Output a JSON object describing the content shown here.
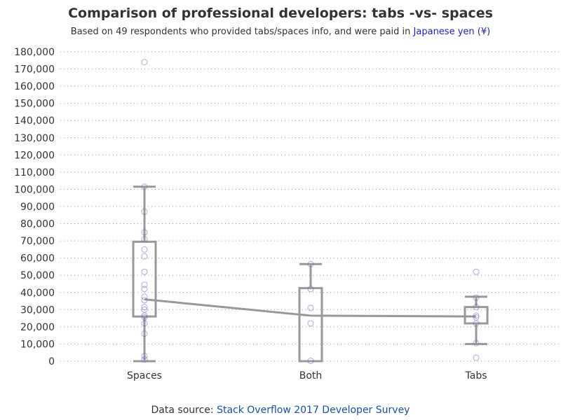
{
  "title": "Comparison of professional developers: tabs -vs- spaces",
  "subtitle": {
    "prefix": "Based on 49 respondents who provided tabs/spaces info, and were paid in",
    "currency": "Japanese yen (¥)"
  },
  "footer": {
    "prefix": "Data source:",
    "source": "Stack Overflow 2017 Developer Survey"
  },
  "colors": {
    "box": "#999999",
    "point": "#6666cc",
    "grid": "#999999",
    "text": "#333333"
  },
  "chart_data": {
    "type": "box",
    "categories": [
      "Spaces",
      "Both",
      "Tabs"
    ],
    "ylim": [
      0,
      180000
    ],
    "yticks": [
      0,
      10000,
      20000,
      30000,
      40000,
      50000,
      60000,
      70000,
      80000,
      90000,
      100000,
      110000,
      120000,
      130000,
      140000,
      150000,
      160000,
      170000,
      180000
    ],
    "ytick_labels": [
      "0",
      "10,000",
      "20,000",
      "30,000",
      "40,000",
      "50,000",
      "60,000",
      "70,000",
      "80,000",
      "90,000",
      "100,000",
      "110,000",
      "120,000",
      "130,000",
      "140,000",
      "150,000",
      "160,000",
      "170,000",
      "180,000"
    ],
    "grid": true,
    "boxes": [
      {
        "category": "Spaces",
        "whisker_low": 0,
        "q1": 26000,
        "median": 36000,
        "q3": 69500,
        "whisker_high": 101500
      },
      {
        "category": "Both",
        "whisker_low": 0,
        "q1": 0,
        "median": 26500,
        "q3": 42500,
        "whisker_high": 56500
      },
      {
        "category": "Tabs",
        "whisker_low": 10000,
        "q1": 22000,
        "median": 26000,
        "q3": 31500,
        "whisker_high": 37500
      }
    ],
    "median_line": [
      36000,
      26500,
      26000
    ],
    "points": [
      {
        "category": "Spaces",
        "values": [
          174000,
          101500,
          87000,
          75000,
          71000,
          65000,
          61000,
          52000,
          44500,
          42000,
          37500,
          35500,
          31500,
          30000,
          26500,
          25500,
          22000,
          16000,
          3000,
          1000
        ]
      },
      {
        "category": "Both",
        "values": [
          56500,
          42000,
          31000,
          22000,
          200
        ]
      },
      {
        "category": "Tabs",
        "values": [
          52000,
          37000,
          31500,
          26500,
          25500,
          22000,
          10500,
          2000
        ]
      }
    ]
  }
}
